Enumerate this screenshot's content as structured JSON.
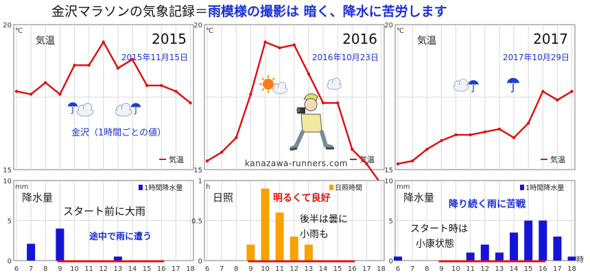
{
  "header": {
    "title_black": "金沢マラソンの気象記録＝",
    "title_blue": "雨模様の撮影は 暗く、降水に苦労します",
    "black_color": "#111111",
    "blue_color": "#1a2fd6"
  },
  "colors": {
    "temp_line": "#e01010",
    "rain_bar": "#1414d8",
    "sun_bar": "#f6a300",
    "grid": "#d8d8d8",
    "border": "#7a7a7a",
    "race_bar": "#e01010",
    "date_text": "#1a2fd6",
    "annotation_blue": "#1a2fd6",
    "annotation_red": "#e01010",
    "annotation_black": "#111111"
  },
  "icons": [
    "rain-cloud-icon",
    "sun-cloud-icon",
    "runner-camera-icon",
    "umbrella-icon"
  ],
  "watermark": "kanazawa-runners.com",
  "chart_data": [
    {
      "id": "temp-2015",
      "type": "line",
      "year": "2015",
      "date": "2015年11月15日",
      "unit": "℃",
      "panel_label": "気温",
      "legend": "気温",
      "note": "金沢（1時間ごとの値）",
      "x": [
        6,
        7,
        8,
        9,
        10,
        11,
        12,
        13,
        14,
        15,
        16,
        17,
        18
      ],
      "values": [
        17.7,
        17.6,
        18.0,
        17.6,
        18.6,
        18.6,
        19.4,
        18.5,
        18.8,
        17.9,
        17.9,
        17.7,
        17.3
      ],
      "ylim": [
        15,
        20
      ],
      "yticks": [
        "20",
        "15"
      ]
    },
    {
      "id": "temp-2016",
      "type": "line",
      "year": "2016",
      "date": "2016年10月23日",
      "unit": "℃",
      "panel_label": "",
      "legend": "気温",
      "note": "",
      "x": [
        6,
        7,
        8,
        9,
        10,
        11,
        12,
        13,
        14,
        15,
        16,
        17,
        18
      ],
      "values": [
        15.3,
        15.6,
        16.1,
        17.6,
        19.4,
        19.2,
        19.3,
        18.3,
        17.3,
        17.3,
        15.7,
        15.2,
        14.5
      ],
      "ylim": [
        15,
        20
      ],
      "yticks": [
        "20",
        "15"
      ]
    },
    {
      "id": "temp-2017",
      "type": "line",
      "year": "2017",
      "date": "2017年10月29日",
      "unit": "℃",
      "panel_label": "気温",
      "legend": "気温",
      "note": "",
      "x": [
        6,
        7,
        8,
        9,
        10,
        11,
        12,
        13,
        14,
        15,
        16,
        17,
        18
      ],
      "values": [
        15.2,
        15.3,
        15.7,
        16.0,
        16.2,
        16.2,
        16.3,
        16.4,
        16.1,
        16.6,
        17.7,
        17.4,
        17.7
      ],
      "ylim": [
        15,
        20
      ],
      "yticks": [
        "20",
        "15"
      ]
    },
    {
      "id": "rain-2015",
      "type": "bar",
      "unit": "mm",
      "panel_label": "降水量",
      "legend": "1時間降水量",
      "series_color": "rain",
      "annotations": [
        {
          "text": "スタート前に大雨",
          "color": "black"
        },
        {
          "text": "途中で雨に遭う",
          "color": "blue"
        }
      ],
      "x": [
        6,
        7,
        8,
        9,
        10,
        11,
        12,
        13,
        14,
        15,
        16,
        17,
        18
      ],
      "values": [
        0,
        2.1,
        0,
        4.0,
        0,
        0,
        0,
        0.5,
        0,
        0,
        0,
        0,
        0
      ],
      "ylim": [
        0,
        10
      ],
      "yticks": [
        "10",
        "5",
        "0"
      ],
      "race": [
        9,
        16
      ]
    },
    {
      "id": "sun-2016",
      "type": "bar",
      "unit": "h",
      "panel_label": "日照",
      "legend": "日照時間",
      "series_color": "sun",
      "annotations": [
        {
          "text": "明るくて良好",
          "color": "red"
        },
        {
          "text": "後半は曇に",
          "color": "black"
        },
        {
          "text": "小雨も",
          "color": "black"
        }
      ],
      "x": [
        6,
        7,
        8,
        9,
        10,
        11,
        12,
        13,
        14,
        15,
        16,
        17,
        18
      ],
      "values": [
        0,
        0,
        0,
        0.2,
        0.9,
        0.6,
        0.3,
        0.2,
        0,
        0,
        0,
        0,
        0
      ],
      "ylim": [
        0,
        1
      ],
      "yticks": [
        "1",
        "0.5",
        "0"
      ],
      "race": [
        9,
        16
      ]
    },
    {
      "id": "rain-2017",
      "type": "bar",
      "unit": "mm",
      "panel_label": "降水量",
      "legend": "1時間降水量",
      "series_color": "rain",
      "annotations": [
        {
          "text": "降り続く雨に苦戦",
          "color": "blue"
        },
        {
          "text": "スタート時は",
          "color": "black"
        },
        {
          "text": "小康状態",
          "color": "black"
        }
      ],
      "x": [
        6,
        7,
        8,
        9,
        10,
        11,
        12,
        13,
        14,
        15,
        16,
        17,
        18
      ],
      "values": [
        0.5,
        0,
        0,
        0,
        0,
        1.0,
        2.0,
        1.0,
        3.5,
        5.0,
        5.0,
        3.0,
        0.5
      ],
      "ylim": [
        0,
        10
      ],
      "yticks": [
        "10",
        "5",
        "0"
      ],
      "race": [
        9,
        16
      ],
      "x_unit": "時"
    }
  ]
}
